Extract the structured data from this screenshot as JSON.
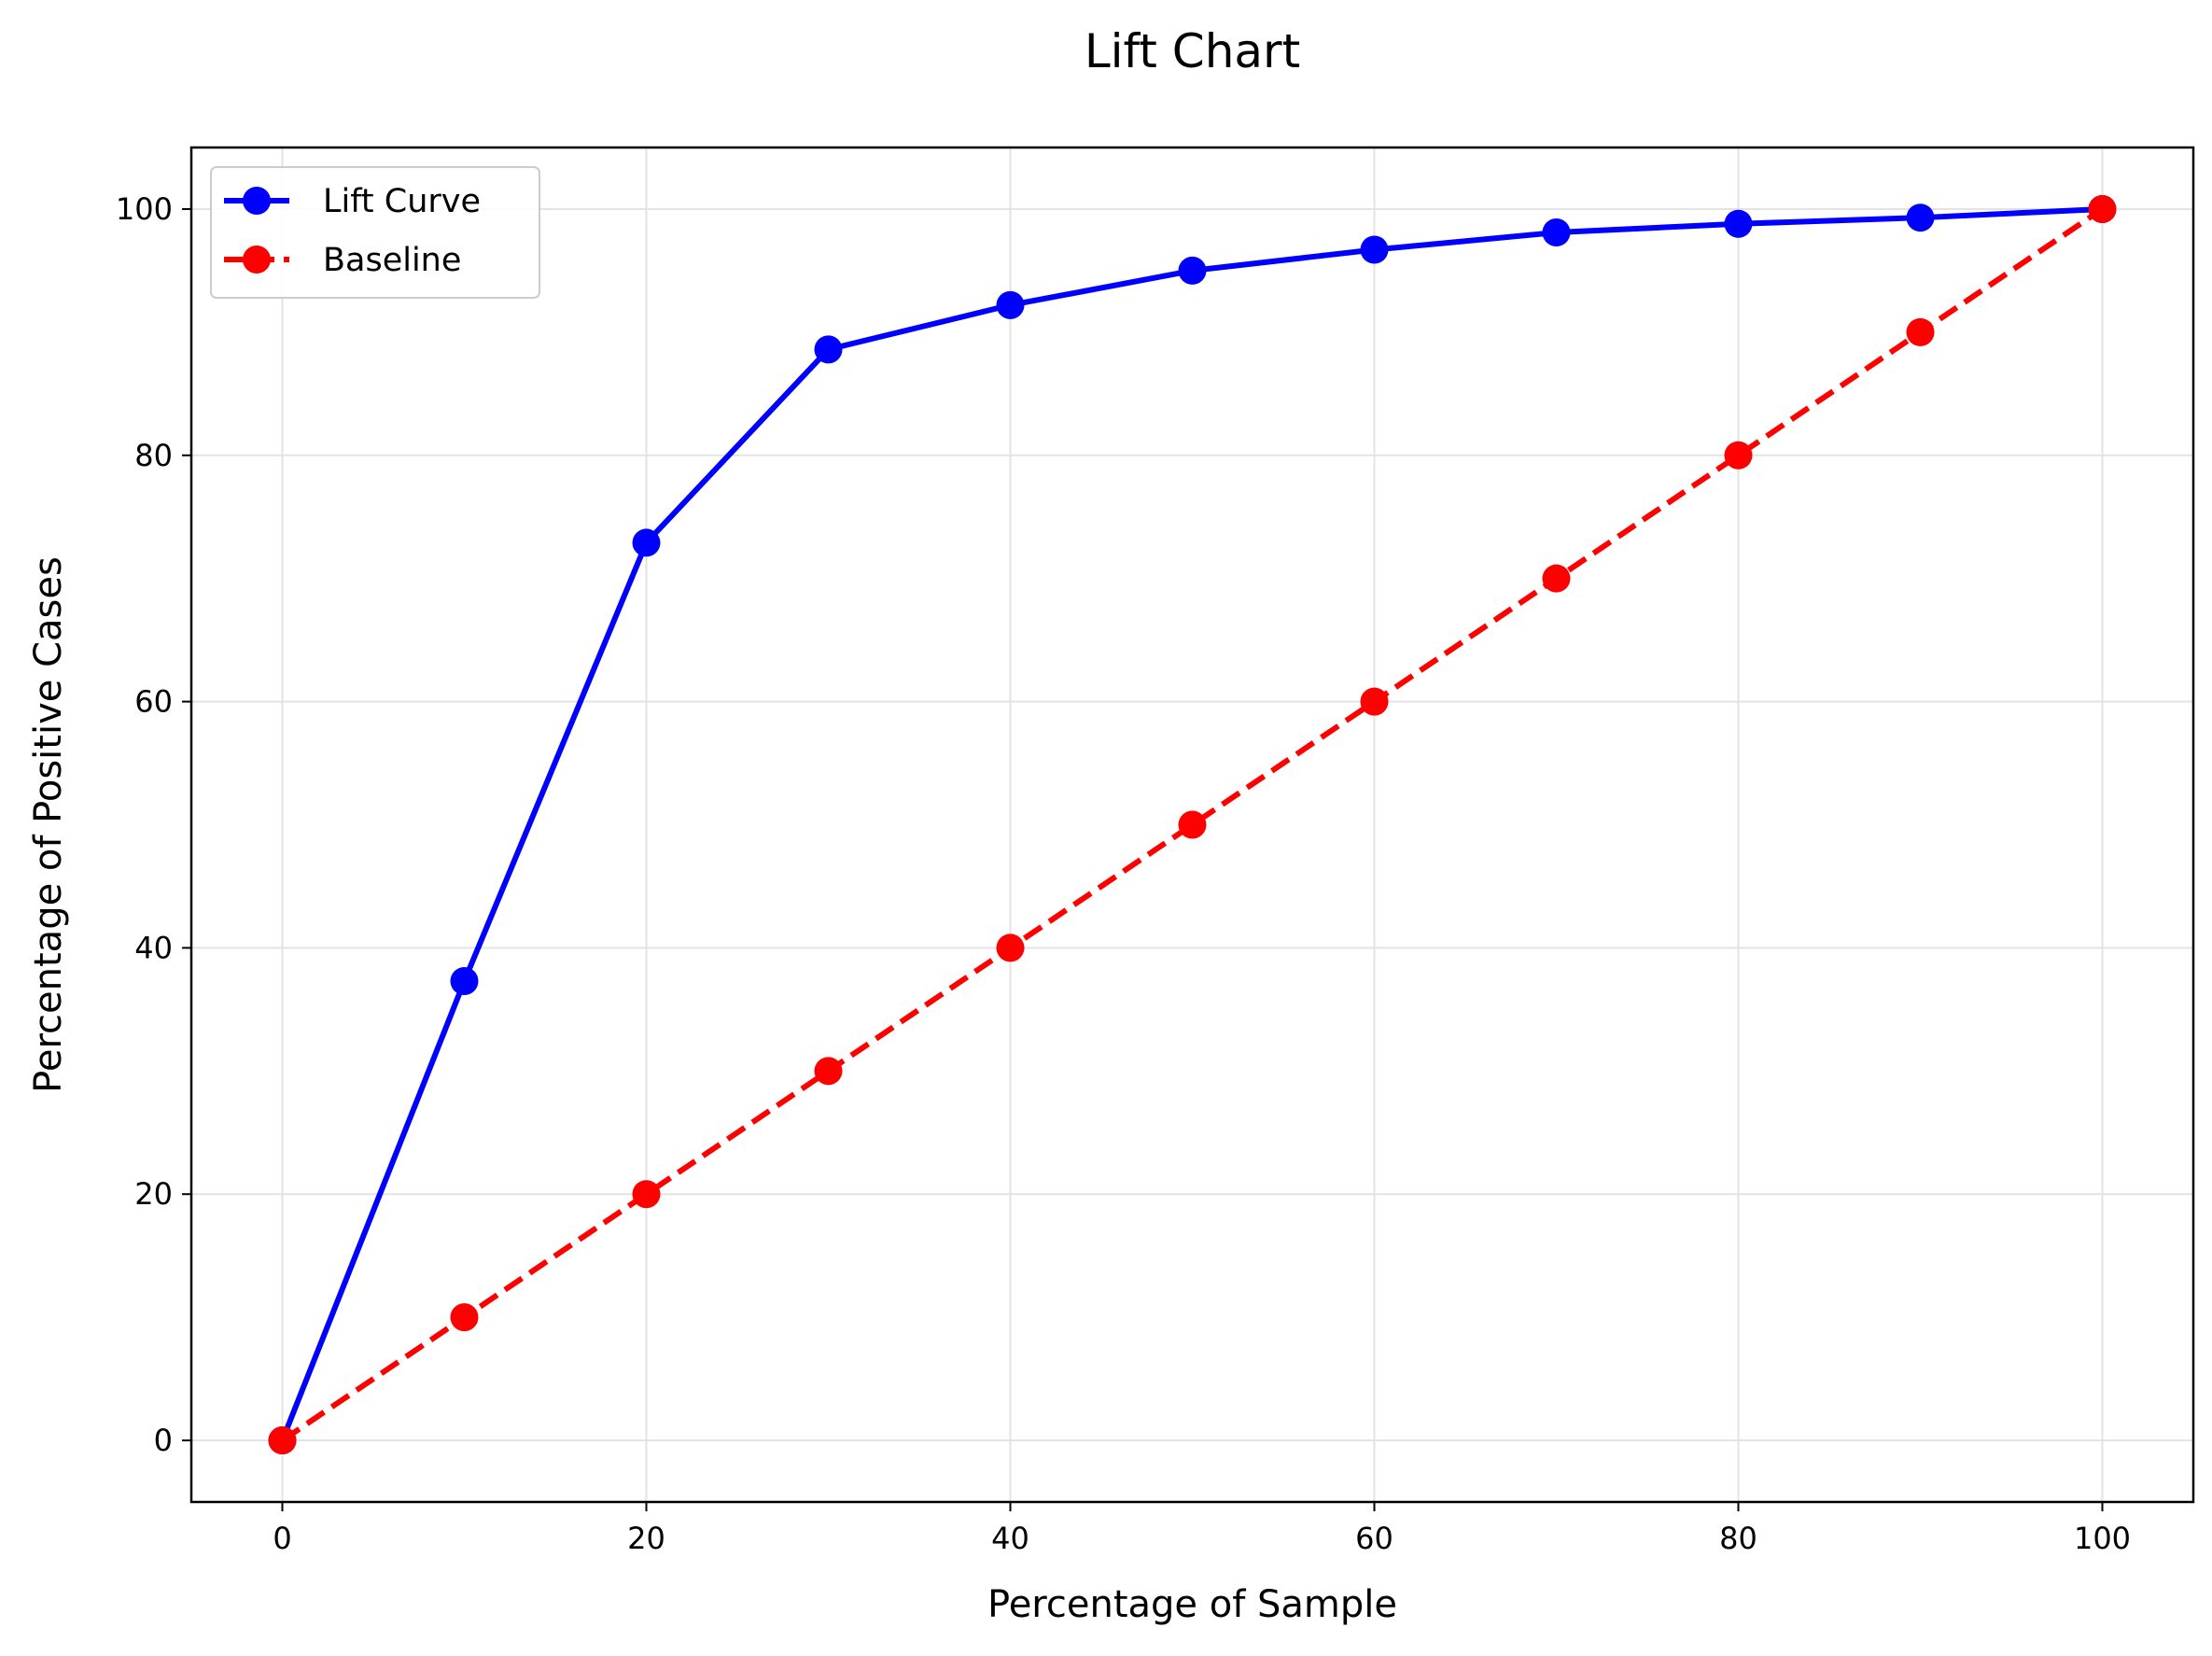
{
  "chart_data": {
    "type": "line",
    "title": "Lift Chart",
    "xlabel": "Percentage of Sample",
    "ylabel": "Percentage of Positive Cases",
    "xlim": [
      -5,
      105
    ],
    "ylim": [
      -5,
      105
    ],
    "xticks": [
      "0",
      "20",
      "40",
      "60",
      "80",
      "100"
    ],
    "yticks": [
      "0",
      "20",
      "40",
      "60",
      "80",
      "100"
    ],
    "grid": true,
    "legend_position": "upper-left",
    "series": [
      {
        "name": "Lift Curve",
        "color": "#0000ff",
        "linestyle": "solid",
        "marker": "circle",
        "x": [
          0,
          10,
          20,
          30,
          40,
          50,
          60,
          70,
          80,
          90,
          100
        ],
        "y": [
          0,
          37.3,
          72.9,
          88.6,
          92.2,
          95.0,
          96.7,
          98.1,
          98.8,
          99.3,
          100
        ]
      },
      {
        "name": "Baseline",
        "color": "#ff0000",
        "linestyle": "dashed",
        "marker": "circle",
        "x": [
          0,
          10,
          20,
          30,
          40,
          50,
          60,
          70,
          80,
          90,
          100
        ],
        "y": [
          0,
          10,
          20,
          30,
          40,
          50,
          60,
          70,
          80,
          90,
          100
        ]
      }
    ]
  }
}
